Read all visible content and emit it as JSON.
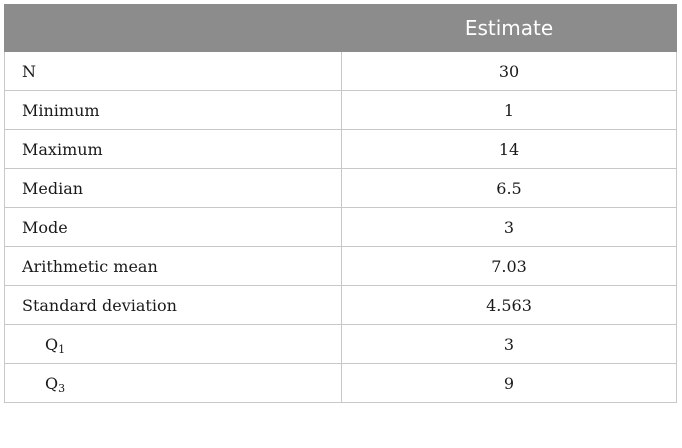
{
  "table": {
    "header": {
      "col1": "",
      "col2": "Estimate"
    },
    "rows": [
      {
        "label": "N",
        "value": "30"
      },
      {
        "label": "Minimum",
        "value": "1"
      },
      {
        "label": "Maximum",
        "value": "14"
      },
      {
        "label": "Median",
        "value": "6.5"
      },
      {
        "label": "Mode",
        "value": "3"
      },
      {
        "label": "Arithmetic mean",
        "value": "7.03"
      },
      {
        "label": "Standard deviation",
        "value": "4.563"
      },
      {
        "label": "Q",
        "sub": "1",
        "value": "3"
      },
      {
        "label": "Q",
        "sub": "3",
        "value": "9"
      }
    ]
  }
}
